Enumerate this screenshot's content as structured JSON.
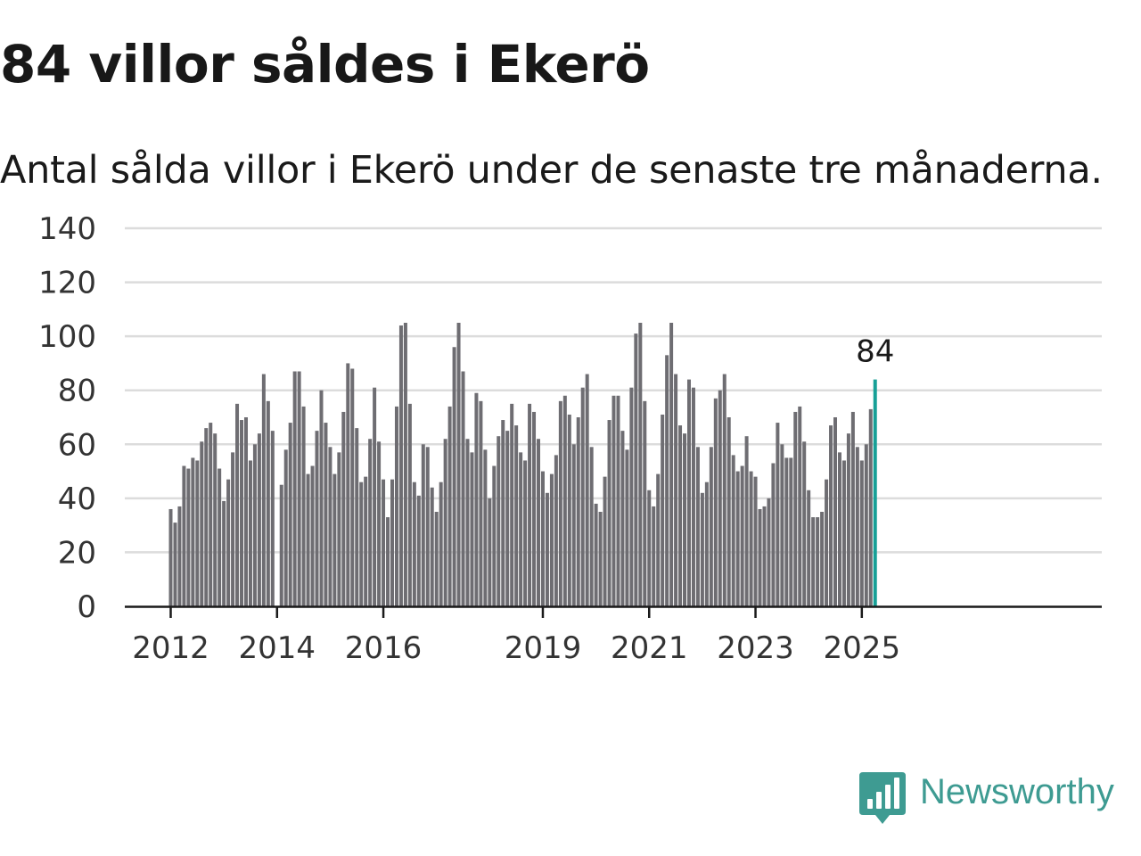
{
  "title": "84 villor såldes i Ekerö",
  "subtitle": "Antal sålda villor i Ekerö under de senaste tre månaderna.",
  "brand": {
    "name": "Newsworthy",
    "icon": "bar-chart-speech-bubble-icon",
    "color": "#3e9b92"
  },
  "colors": {
    "bar": "#6e6d72",
    "highlight": "#17a097",
    "grid": "#dcdcdc",
    "axis": "#1a1a1a",
    "text": "#333333"
  },
  "chart_data": {
    "type": "bar",
    "title": "84 villor såldes i Ekerö",
    "subtitle": "Antal sålda villor i Ekerö under de senaste tre månaderna.",
    "xlabel": "",
    "ylabel": "",
    "ylim": [
      0,
      140
    ],
    "yticks": [
      0,
      20,
      40,
      60,
      80,
      100,
      120,
      140
    ],
    "xticks": [
      "2012",
      "2014",
      "2016",
      "2019",
      "2021",
      "2023",
      "2025"
    ],
    "grid": true,
    "frequency": "monthly",
    "first_period": "2012-01",
    "last_period": "2025-04",
    "values": [
      36,
      31,
      37,
      52,
      51,
      55,
      54,
      61,
      66,
      68,
      64,
      51,
      39,
      47,
      57,
      75,
      69,
      70,
      54,
      60,
      64,
      86,
      76,
      65,
      0,
      45,
      58,
      68,
      87,
      87,
      74,
      49,
      52,
      65,
      80,
      68,
      59,
      49,
      57,
      72,
      90,
      88,
      66,
      46,
      48,
      62,
      81,
      61,
      47,
      33,
      47,
      74,
      104,
      105,
      75,
      46,
      41,
      60,
      59,
      44,
      35,
      46,
      62,
      74,
      96,
      105,
      87,
      62,
      57,
      79,
      76,
      58,
      40,
      52,
      63,
      69,
      65,
      75,
      67,
      57,
      54,
      75,
      72,
      62,
      50,
      42,
      49,
      56,
      76,
      78,
      71,
      60,
      70,
      81,
      86,
      59,
      38,
      35,
      48,
      69,
      78,
      78,
      65,
      58,
      81,
      101,
      105,
      76,
      43,
      37,
      49,
      71,
      93,
      105,
      86,
      67,
      64,
      84,
      81,
      59,
      42,
      46,
      59,
      77,
      80,
      86,
      70,
      56,
      50,
      52,
      63,
      50,
      48,
      36,
      37,
      40,
      53,
      68,
      60,
      55,
      55,
      72,
      74,
      61,
      43,
      33,
      33,
      35,
      47,
      67,
      70,
      57,
      54,
      64,
      72,
      59,
      54,
      60,
      73,
      84
    ],
    "highlight": {
      "period": "2025-04",
      "value": 84,
      "label": "84"
    }
  }
}
